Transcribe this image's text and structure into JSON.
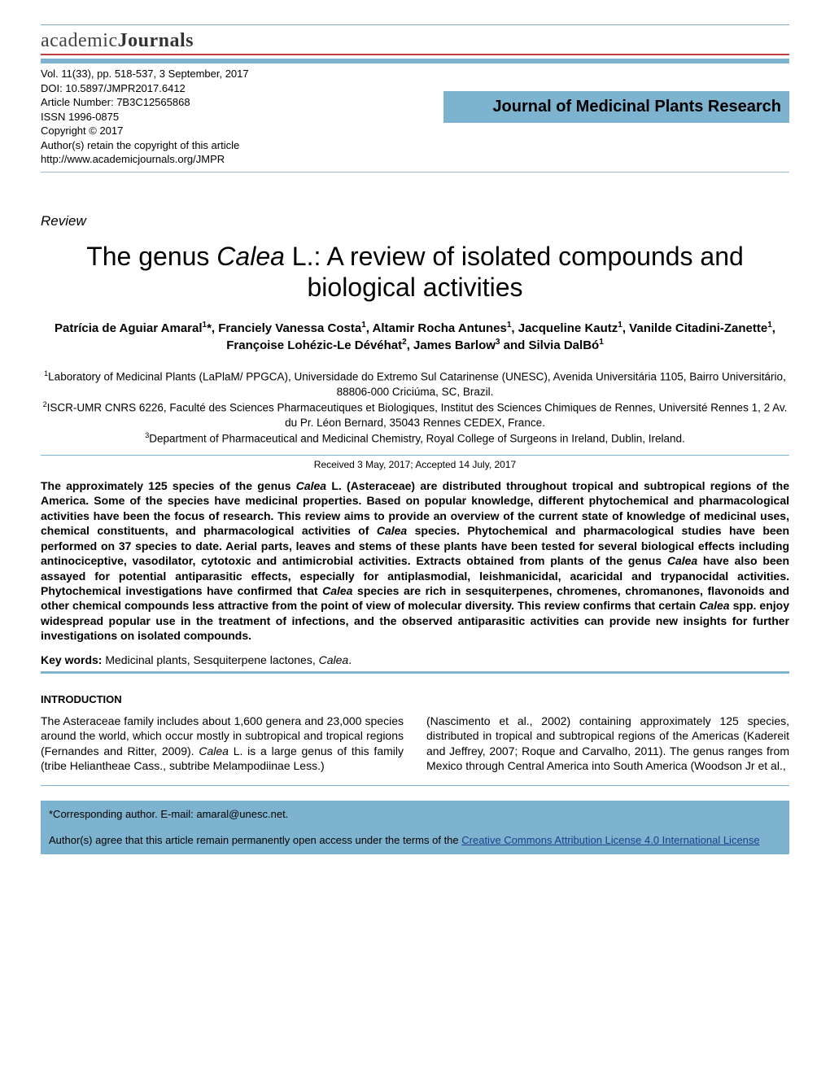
{
  "colors": {
    "band": "#7eb3d0",
    "red_rule": "#c04040",
    "text": "#000000",
    "link": "#1a3e8a",
    "background": "#ffffff"
  },
  "typography": {
    "body_family": "Arial",
    "body_size_pt": 11,
    "title_size_pt": 24,
    "journal_title_size_pt": 15
  },
  "logo": {
    "part1": "academic",
    "part2": "Journals"
  },
  "meta": {
    "vol_line": "Vol. 11(33), pp. 518-537, 3 September, 2017",
    "doi_line": "DOI: 10.5897/JMPR2017.6412",
    "article_no_line": "Article Number: 7B3C12565868",
    "issn_line": "ISSN 1996-0875",
    "copyright_line": "Copyright © 2017",
    "retain_line": "Author(s) retain the copyright of this article",
    "url_line": "http://www.academicjournals.org/JMPR"
  },
  "journal_title": "Journal of Medicinal Plants Research",
  "article": {
    "type_label": "Review",
    "title_pre": "The genus ",
    "title_italic": "Calea",
    "title_post": " L.: A review of isolated compounds and biological activities"
  },
  "authors_html": "Patrícia de Aguiar Amaral<sup>1</sup>*, Franciely Vanessa Costa<sup>1</sup>, Altamir Rocha Antunes<sup>1</sup>, Jacqueline Kautz<sup>1</sup>, Vanilde Citadini-Zanette<sup>1</sup>, Françoise Lohézic-Le Dévéhat<sup>2</sup>, James Barlow<sup>3</sup> and Silvia DalBó<sup>1</sup>",
  "affiliations": {
    "a1_pre": "1",
    "a1": "Laboratory of Medicinal Plants (LaPlaM/ PPGCA), Universidade do Extremo Sul Catarinense (UNESC), Avenida Universitária 1105, Bairro Universitário, 88806-000 Criciúma, SC, Brazil.",
    "a2_pre": "2",
    "a2": "ISCR-UMR CNRS 6226, Faculté des Sciences Pharmaceutiques et Biologiques, Institut des Sciences Chimiques de Rennes, Université Rennes 1, 2 Av. du Pr. Léon Bernard, 35043 Rennes CEDEX, France.",
    "a3_pre": "3",
    "a3": "Department of Pharmaceutical and Medicinal Chemistry, Royal College of Surgeons in Ireland, Dublin, Ireland."
  },
  "dates": "Received 3 May, 2017; Accepted 14 July, 2017",
  "abstract": {
    "p1a": "The approximately 125 species of the genus ",
    "i1": "Calea",
    "p1b": " L. (Asteraceae) are distributed throughout tropical and subtropical regions of the America. Some of the species have medicinal properties. Based on popular knowledge, different phytochemical and pharmacological activities have been the focus of research. This review aims to provide an overview of the current state of knowledge of medicinal uses, chemical constituents, and pharmacological activities of ",
    "i2": "Calea",
    "p1c": " species. Phytochemical and pharmacological studies have been performed on 37 species to date. Aerial parts, leaves and stems of these plants have been tested for several biological effects including antinociceptive, vasodilator, cytotoxic and antimicrobial activities. Extracts obtained from plants of the genus ",
    "i3": "Calea",
    "p1d": " have also been assayed for potential antiparasitic effects, especially for antiplasmodial, leishmanicidal, acaricidal and trypanocidal activities. Phytochemical investigations have confirmed that ",
    "i4": "Calea",
    "p1e": " species are rich in sesquiterpenes, chromenes, chromanones, flavonoids and other chemical compounds less attractive from the point of view of molecular diversity. This review confirms that certain ",
    "i5": "Calea",
    "p1f": " spp. enjoy widespread popular use in the treatment of infections, and the observed antiparasitic activities can provide new insights for further investigations on isolated compounds."
  },
  "keywords": {
    "label": "Key words:",
    "text_pre": " Medicinal plants, Sesquiterpene lactones, ",
    "italic": "Calea",
    "text_post": "."
  },
  "introduction": {
    "heading": "INTRODUCTION",
    "col1a": "The Asteraceae family includes about 1,600 genera and 23,000 species around the world, which occur mostly in subtropical and tropical regions (Fernandes and Ritter, 2009). ",
    "col1_i": "Calea",
    "col1b": " L. is a large genus of this family (tribe Heliantheae Cass., subtribe Melampodiinae Less.)",
    "col2": "(Nascimento et al., 2002) containing approximately 125 species, distributed in tropical and subtropical regions of the Americas (Kadereit and Jeffrey, 2007; Roque and Carvalho, 2011). The genus ranges from Mexico through Central America into South America (Woodson  Jr  et al.,"
  },
  "footer": {
    "corr": "*Corresponding author. E-mail: amaral@unesc.net.",
    "license_pre": "Author(s) agree that this article remain permanently open access under the terms of the ",
    "license_link": "Creative Commons Attribution License 4.0 International License"
  }
}
